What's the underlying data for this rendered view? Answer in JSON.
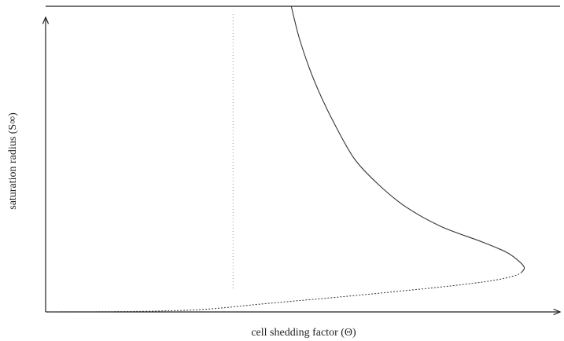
{
  "chart_data": {
    "type": "line",
    "xlabel": "cell shedding factor (Θ)",
    "ylabel": "saturation radius (S∞)",
    "xlim": [
      0,
      1
    ],
    "ylim": [
      0,
      1
    ],
    "grid": false,
    "colors": {
      "axis": "#222222",
      "curve": "#333333",
      "reference": "#9a9a9a"
    },
    "reference_line": {
      "x": 0.37,
      "style": "dotted"
    },
    "series": [
      {
        "style": "solid",
        "points": [
          [
            0.485,
            1.0
          ],
          [
            0.5,
            0.9
          ],
          [
            0.52,
            0.8
          ],
          [
            0.545,
            0.7
          ],
          [
            0.575,
            0.6
          ],
          [
            0.61,
            0.5
          ],
          [
            0.655,
            0.42
          ],
          [
            0.71,
            0.345
          ],
          [
            0.78,
            0.28
          ],
          [
            0.86,
            0.23
          ],
          [
            0.91,
            0.195
          ],
          [
            0.935,
            0.165
          ],
          [
            0.945,
            0.145
          ],
          [
            0.94,
            0.13
          ]
        ]
      },
      {
        "style": "dotted",
        "points": [
          [
            0.94,
            0.13
          ],
          [
            0.925,
            0.118
          ],
          [
            0.88,
            0.102
          ],
          [
            0.8,
            0.085
          ],
          [
            0.7,
            0.068
          ],
          [
            0.6,
            0.052
          ],
          [
            0.5,
            0.037
          ],
          [
            0.42,
            0.025
          ],
          [
            0.36,
            0.015
          ],
          [
            0.31,
            0.008
          ],
          [
            0.25,
            0.004
          ],
          [
            0.15,
            0.001
          ],
          [
            0.0,
            0.0
          ]
        ]
      }
    ]
  }
}
